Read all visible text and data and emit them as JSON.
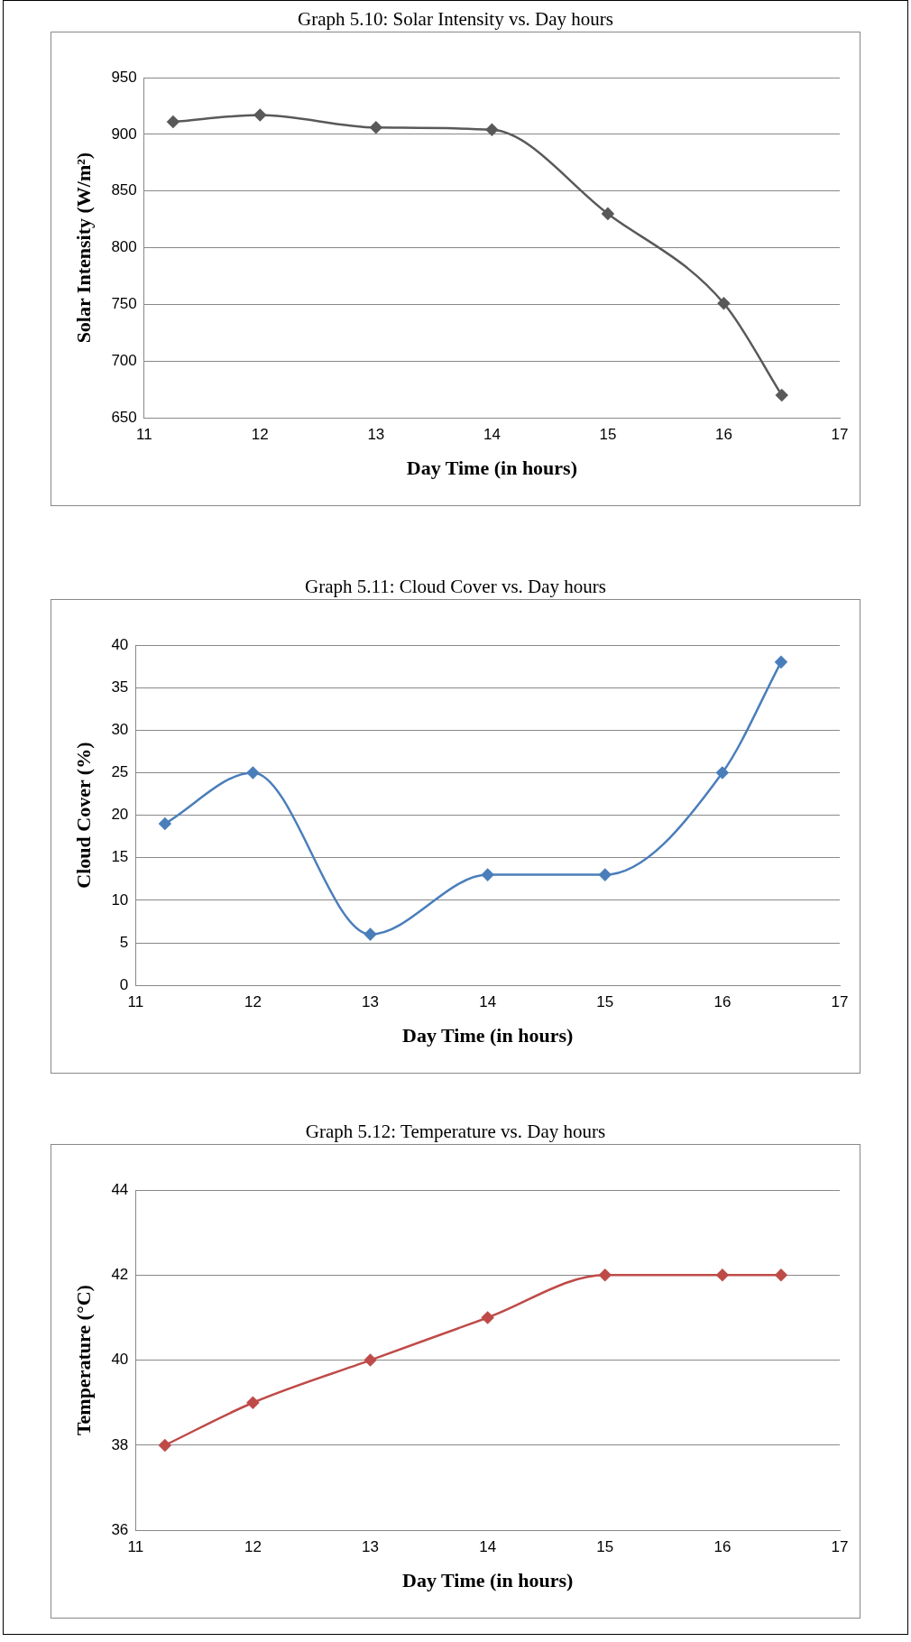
{
  "chart_data": [
    {
      "type": "line",
      "title": "Graph 5.10: Solar Intensity vs. Day hours",
      "xlabel": "Day Time (in hours)",
      "ylabel": "Solar Intensity (W/m²)",
      "x": [
        11.25,
        12,
        13,
        14,
        15,
        16,
        16.5
      ],
      "series": [
        {
          "color": "#595959",
          "values": [
            911,
            917,
            906,
            904,
            830,
            751,
            670
          ]
        }
      ],
      "xlim": [
        11,
        17
      ],
      "xticks": [
        11,
        12,
        13,
        14,
        15,
        16,
        17
      ],
      "ylim": [
        650,
        950
      ],
      "yticks": [
        650,
        700,
        750,
        800,
        850,
        900,
        950
      ],
      "grid": "y",
      "legend": false,
      "marker": "diamond",
      "line_style": "solid"
    },
    {
      "type": "line",
      "title": "Graph 5.11: Cloud Cover vs. Day hours",
      "xlabel": "Day Time (in hours)",
      "ylabel": "Cloud Cover (%)",
      "x": [
        11.25,
        12,
        13,
        14,
        15,
        16,
        16.5
      ],
      "series": [
        {
          "color": "#4a7ebb",
          "values": [
            19,
            25,
            6,
            13,
            13,
            25,
            38
          ]
        }
      ],
      "xlim": [
        11,
        17
      ],
      "xticks": [
        11,
        12,
        13,
        14,
        15,
        16,
        17
      ],
      "ylim": [
        0,
        40
      ],
      "yticks": [
        0,
        5,
        10,
        15,
        20,
        25,
        30,
        35,
        40
      ],
      "grid": "y",
      "legend": false,
      "marker": "diamond",
      "line_style": "solid"
    },
    {
      "type": "line",
      "title": "Graph 5.12: Temperature vs. Day hours",
      "xlabel": "Day Time (in hours)",
      "ylabel": "Temperature (°C)",
      "x": [
        11.25,
        12,
        13,
        14,
        15,
        16,
        16.5
      ],
      "series": [
        {
          "color": "#be4b48",
          "values": [
            38,
            39,
            40,
            41,
            42,
            42,
            42
          ]
        }
      ],
      "xlim": [
        11,
        17
      ],
      "xticks": [
        11,
        12,
        13,
        14,
        15,
        16,
        17
      ],
      "ylim": [
        36,
        44
      ],
      "yticks": [
        36,
        38,
        40,
        42,
        44
      ],
      "grid": "y",
      "legend": false,
      "marker": "diamond",
      "line_style": "solid"
    }
  ]
}
